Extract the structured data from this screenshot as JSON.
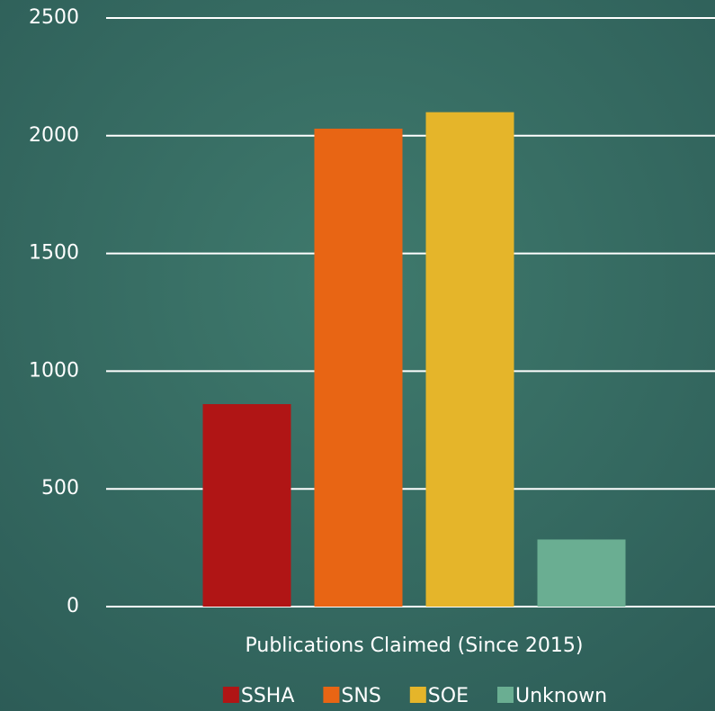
{
  "chart_data": {
    "type": "bar",
    "categories": [
      "Publications Claimed (Since 2015)"
    ],
    "series": [
      {
        "name": "SSHA",
        "color": "#b01515",
        "values": [
          860
        ]
      },
      {
        "name": "SNS",
        "color": "#e86514",
        "values": [
          2030
        ]
      },
      {
        "name": "SOE",
        "color": "#e5b52a",
        "values": [
          2100
        ]
      },
      {
        "name": "Unknown",
        "color": "#6aae92",
        "values": [
          285
        ]
      }
    ],
    "ylim": [
      0,
      2500
    ],
    "yticks": [
      0,
      500,
      1000,
      1500,
      2000,
      2500
    ],
    "grid": true,
    "legend": "bottom"
  }
}
